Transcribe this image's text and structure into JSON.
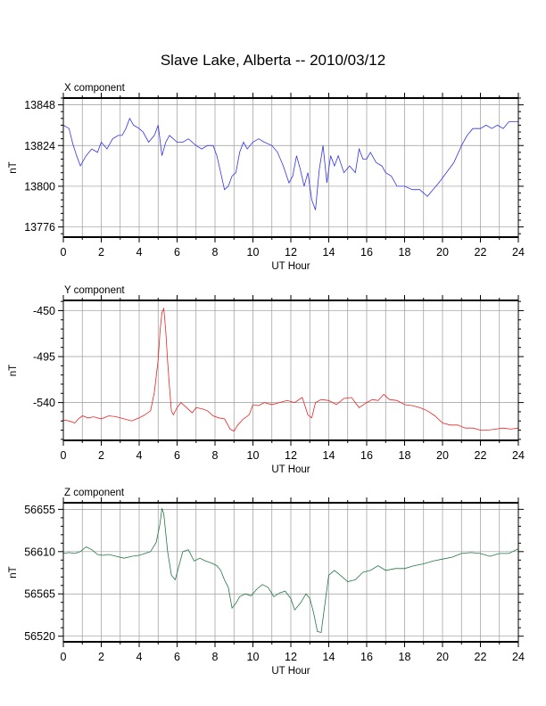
{
  "title": "Slave Lake, Alberta -- 2010/03/12",
  "chart_data": [
    {
      "type": "line",
      "panel_title": "X component",
      "xlabel": "UT Hour",
      "ylabel": "nT",
      "xlim": [
        0,
        24
      ],
      "ylim": [
        13770,
        13852
      ],
      "xticks": [
        "0",
        "2",
        "4",
        "6",
        "8",
        "10",
        "12",
        "14",
        "16",
        "18",
        "20",
        "22",
        "24"
      ],
      "yticks": [
        "13848",
        "13824",
        "13800",
        "13776"
      ],
      "grid": true,
      "color": "#3333ee",
      "x": [
        0,
        0.3,
        0.5,
        0.7,
        0.9,
        1.2,
        1.5,
        1.8,
        2.0,
        2.3,
        2.6,
        2.9,
        3.1,
        3.3,
        3.5,
        3.7,
        4.0,
        4.2,
        4.5,
        4.8,
        5.0,
        5.2,
        5.4,
        5.6,
        5.8,
        6.0,
        6.3,
        6.6,
        7.0,
        7.3,
        7.6,
        7.9,
        8.1,
        8.3,
        8.5,
        8.7,
        8.9,
        9.1,
        9.3,
        9.5,
        9.7,
        10.0,
        10.3,
        10.6,
        11.0,
        11.3,
        11.6,
        11.9,
        12.1,
        12.3,
        12.5,
        12.7,
        12.9,
        13.1,
        13.3,
        13.5,
        13.7,
        13.9,
        14.1,
        14.3,
        14.5,
        14.8,
        15.1,
        15.4,
        15.6,
        15.8,
        16.0,
        16.2,
        16.5,
        16.8,
        17.0,
        17.3,
        17.6,
        18.0,
        18.4,
        18.8,
        19.2,
        19.5,
        19.8,
        20.2,
        20.6,
        21.0,
        21.3,
        21.6,
        22.0,
        22.3,
        22.6,
        22.9,
        23.2,
        23.5,
        23.8,
        24.0
      ],
      "y": [
        13836,
        13834,
        13825,
        13818,
        13812,
        13818,
        13822,
        13820,
        13826,
        13822,
        13828,
        13830,
        13830,
        13834,
        13840,
        13836,
        13834,
        13832,
        13826,
        13830,
        13836,
        13818,
        13826,
        13830,
        13828,
        13826,
        13826,
        13828,
        13824,
        13822,
        13824,
        13824,
        13818,
        13808,
        13798,
        13800,
        13806,
        13808,
        13820,
        13826,
        13822,
        13826,
        13828,
        13826,
        13824,
        13820,
        13812,
        13802,
        13806,
        13818,
        13810,
        13800,
        13808,
        13792,
        13786,
        13810,
        13824,
        13802,
        13818,
        13812,
        13818,
        13808,
        13812,
        13808,
        13822,
        13816,
        13816,
        13820,
        13814,
        13812,
        13808,
        13806,
        13800,
        13800,
        13798,
        13798,
        13794,
        13798,
        13802,
        13808,
        13814,
        13824,
        13830,
        13834,
        13834,
        13836,
        13834,
        13836,
        13834,
        13838,
        13838,
        13838
      ]
    },
    {
      "type": "line",
      "panel_title": "Y component",
      "xlabel": "UT Hour",
      "ylabel": "nT",
      "xlim": [
        0,
        24
      ],
      "ylim": [
        -577,
        -440
      ],
      "xticks": [
        "0",
        "2",
        "4",
        "6",
        "8",
        "10",
        "12",
        "14",
        "16",
        "18",
        "20",
        "22",
        "24"
      ],
      "yticks": [
        "-450",
        "-495",
        "-540"
      ],
      "grid": true,
      "color": "#ee2222",
      "x": [
        0,
        0.3,
        0.6,
        0.8,
        1.0,
        1.3,
        1.6,
        2.0,
        2.4,
        2.8,
        3.2,
        3.6,
        4.0,
        4.3,
        4.6,
        4.8,
        5.0,
        5.1,
        5.2,
        5.3,
        5.4,
        5.5,
        5.6,
        5.7,
        5.8,
        6.0,
        6.2,
        6.5,
        6.8,
        7.0,
        7.3,
        7.6,
        7.9,
        8.2,
        8.5,
        8.8,
        9.0,
        9.2,
        9.5,
        9.8,
        10.0,
        10.3,
        10.6,
        11.0,
        11.4,
        11.8,
        12.2,
        12.6,
        12.9,
        13.1,
        13.3,
        13.6,
        14.0,
        14.4,
        14.8,
        15.2,
        15.6,
        16.0,
        16.3,
        16.6,
        16.9,
        17.2,
        17.6,
        18.0,
        18.4,
        18.8,
        19.2,
        19.6,
        20.0,
        20.4,
        20.8,
        21.2,
        21.6,
        22.0,
        22.4,
        22.8,
        23.2,
        23.6,
        24.0
      ],
      "y": [
        -557,
        -558,
        -560,
        -556,
        -553,
        -555,
        -554,
        -556,
        -553,
        -554,
        -556,
        -558,
        -555,
        -552,
        -548,
        -530,
        -498,
        -470,
        -452,
        -448,
        -470,
        -500,
        -525,
        -548,
        -552,
        -545,
        -540,
        -545,
        -550,
        -545,
        -546,
        -548,
        -553,
        -555,
        -556,
        -566,
        -568,
        -562,
        -556,
        -552,
        -542,
        -543,
        -540,
        -542,
        -540,
        -538,
        -540,
        -535,
        -552,
        -555,
        -540,
        -537,
        -538,
        -542,
        -536,
        -535,
        -545,
        -540,
        -537,
        -538,
        -532,
        -537,
        -538,
        -542,
        -543,
        -545,
        -548,
        -553,
        -560,
        -562,
        -562,
        -565,
        -565,
        -567,
        -567,
        -566,
        -565,
        -566,
        -565
      ]
    },
    {
      "type": "line",
      "panel_title": "Z component",
      "xlabel": "UT Hour",
      "ylabel": "nT",
      "xlim": [
        0,
        24
      ],
      "ylim": [
        56514,
        56662
      ],
      "xticks": [
        "0",
        "2",
        "4",
        "6",
        "8",
        "10",
        "12",
        "14",
        "16",
        "18",
        "20",
        "22",
        "24"
      ],
      "yticks": [
        "56655",
        "56610",
        "56565",
        "56520"
      ],
      "grid": true,
      "color": "#227744",
      "x": [
        0,
        0.3,
        0.6,
        0.9,
        1.2,
        1.5,
        1.8,
        2.1,
        2.4,
        2.8,
        3.2,
        3.6,
        4.0,
        4.3,
        4.6,
        4.9,
        5.1,
        5.2,
        5.3,
        5.5,
        5.7,
        5.9,
        6.1,
        6.3,
        6.6,
        6.9,
        7.2,
        7.5,
        7.8,
        8.1,
        8.3,
        8.5,
        8.7,
        8.9,
        9.1,
        9.3,
        9.6,
        9.9,
        10.2,
        10.5,
        10.8,
        11.1,
        11.4,
        11.7,
        12.0,
        12.2,
        12.5,
        12.8,
        13.0,
        13.2,
        13.4,
        13.6,
        13.8,
        14.0,
        14.3,
        14.6,
        15.0,
        15.4,
        15.8,
        16.2,
        16.6,
        17.0,
        17.5,
        18.0,
        18.5,
        19.0,
        19.5,
        20.0,
        20.5,
        21.0,
        21.5,
        22.0,
        22.5,
        23.0,
        23.5,
        24.0
      ],
      "y": [
        56608,
        56609,
        56608,
        56610,
        56615,
        56612,
        56607,
        56606,
        56607,
        56605,
        56603,
        56605,
        56606,
        56608,
        56610,
        56620,
        56640,
        56656,
        56650,
        56610,
        56585,
        56580,
        56595,
        56610,
        56612,
        56600,
        56603,
        56600,
        56598,
        56595,
        56590,
        56580,
        56572,
        56550,
        56555,
        56562,
        56565,
        56563,
        56570,
        56575,
        56572,
        56562,
        56566,
        56568,
        56560,
        56548,
        56555,
        56565,
        56560,
        56545,
        56525,
        56524,
        56555,
        56585,
        56590,
        56585,
        56578,
        56580,
        56588,
        56590,
        56595,
        56590,
        56592,
        56592,
        56595,
        56597,
        56600,
        56602,
        56604,
        56608,
        56609,
        56608,
        56605,
        56608,
        56608,
        56613
      ]
    }
  ]
}
